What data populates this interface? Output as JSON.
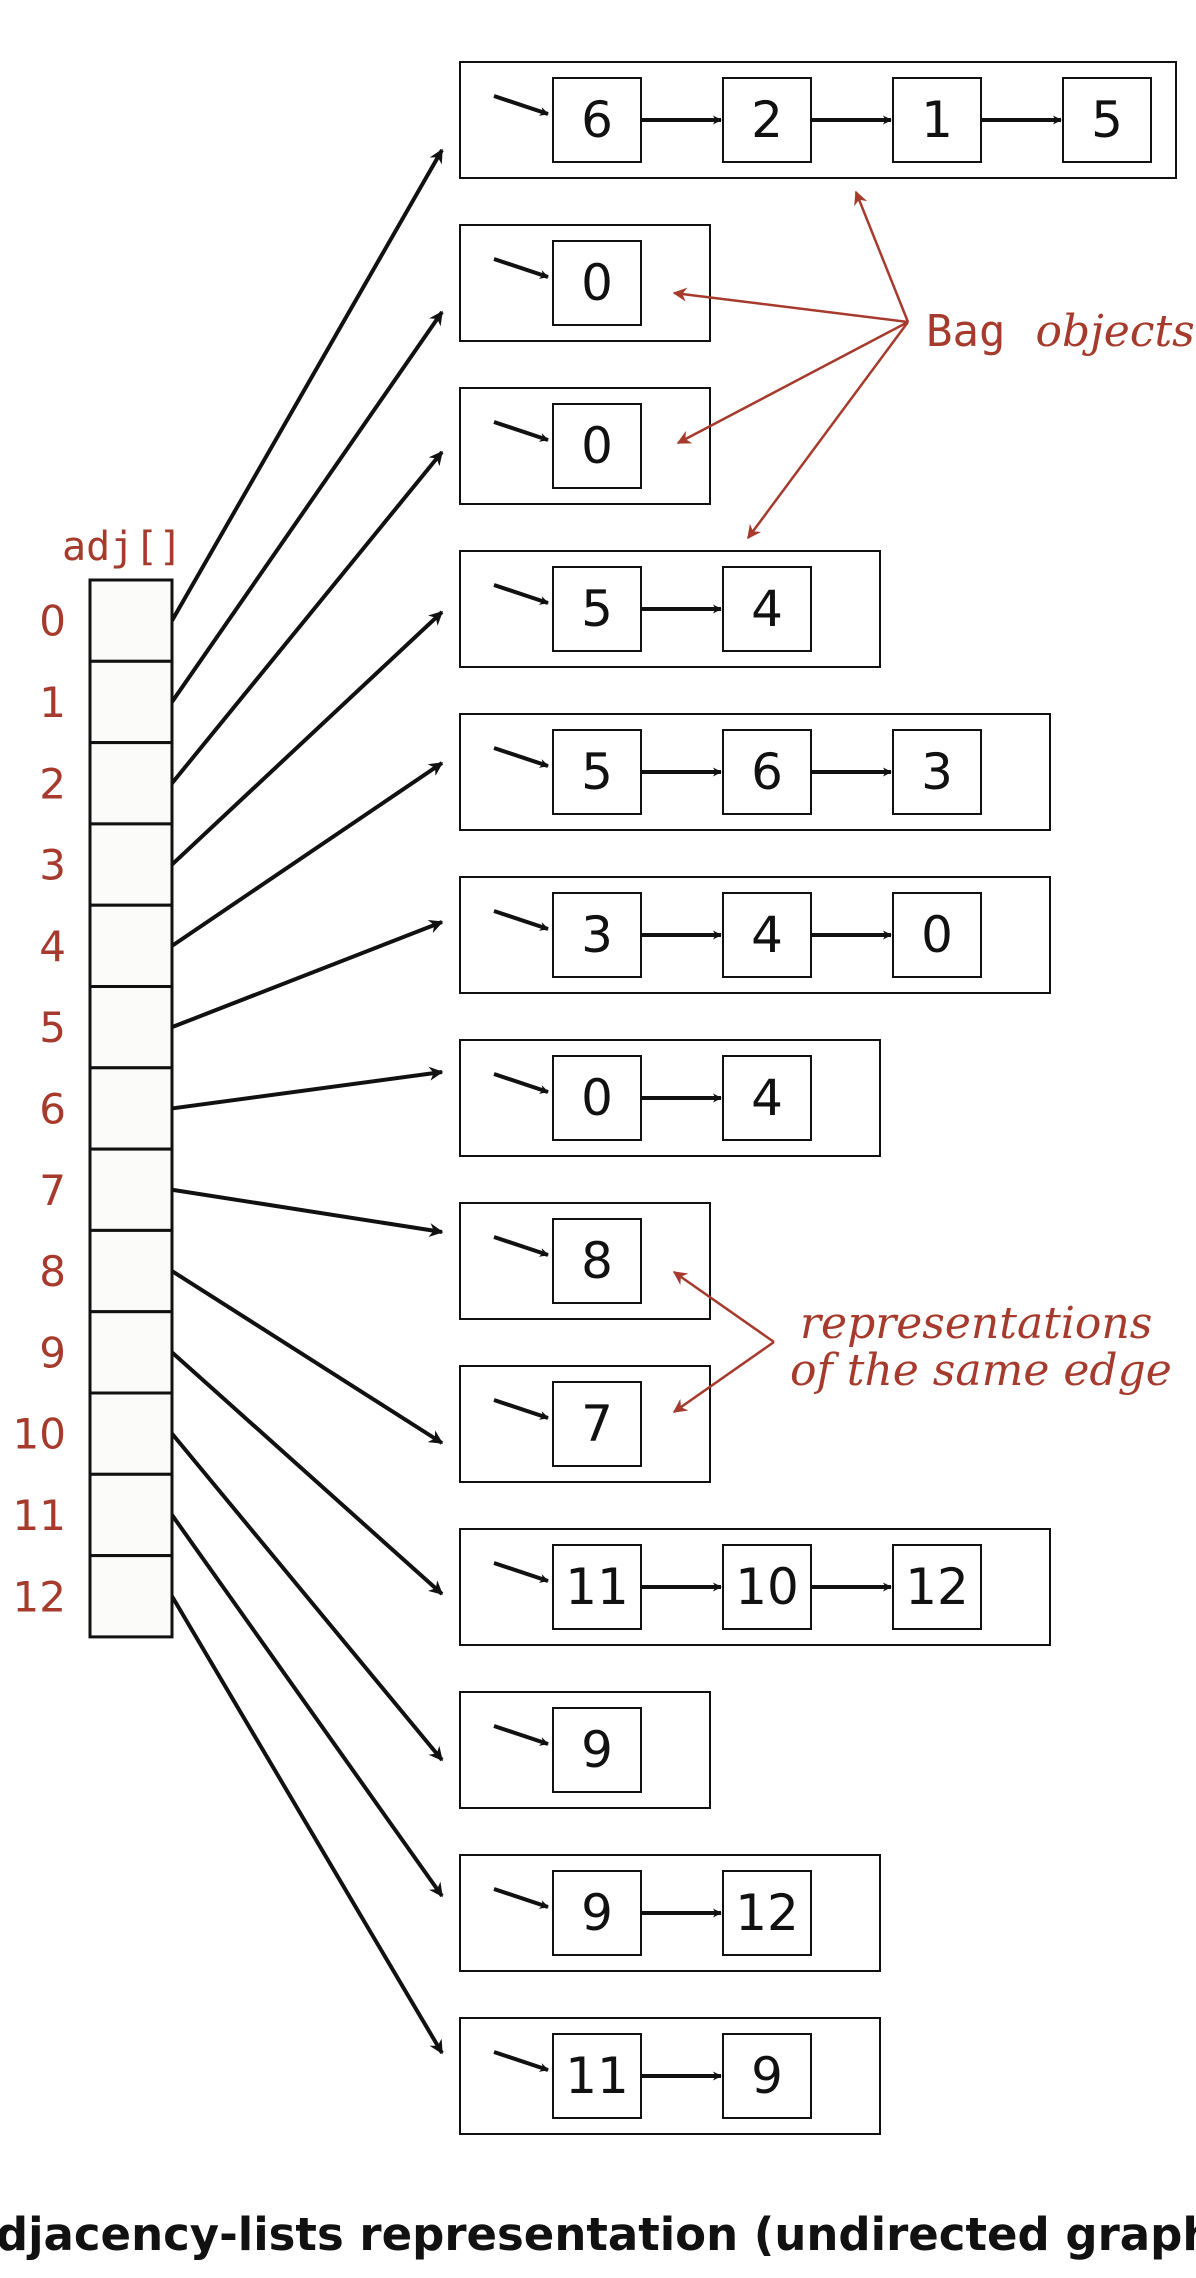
{
  "array": {
    "label": "adj[]",
    "indices": [
      "0",
      "1",
      "2",
      "3",
      "4",
      "5",
      "6",
      "7",
      "8",
      "9",
      "10",
      "11",
      "12"
    ]
  },
  "lists": [
    [
      "6",
      "2",
      "1",
      "5"
    ],
    [
      "0"
    ],
    [
      "0"
    ],
    [
      "5",
      "4"
    ],
    [
      "5",
      "6",
      "3"
    ],
    [
      "3",
      "4",
      "0"
    ],
    [
      "0",
      "4"
    ],
    [
      "8"
    ],
    [
      "7"
    ],
    [
      "11",
      "10",
      "12"
    ],
    [
      "9"
    ],
    [
      "9",
      "12"
    ],
    [
      "11",
      "9"
    ]
  ],
  "annotations": {
    "bag_code": "Bag",
    "bag_text": "objects",
    "edge_line1": "representations",
    "edge_line2": "of the same edge"
  },
  "caption": "Adjacency-lists representation (undirected graph)",
  "colors": {
    "accent": "#a63a2c",
    "ink": "#111111",
    "cell_fill": "#fbfcfa"
  }
}
